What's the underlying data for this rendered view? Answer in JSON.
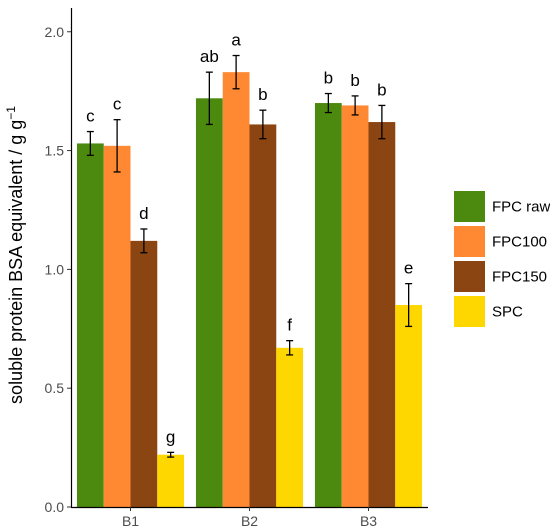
{
  "chart_data": {
    "type": "bar",
    "title": "",
    "xlabel": "",
    "ylabel": "soluble protein BSA equivalent / g g",
    "ylabel_superscript": "−1",
    "categories": [
      "B1",
      "B2",
      "B3"
    ],
    "ylim": [
      0,
      2.1
    ],
    "yticks": [
      "0.0",
      "0.5",
      "1.0",
      "1.5",
      "2.0"
    ],
    "grid": false,
    "legend_position": "right",
    "series": [
      {
        "name": "FPC raw",
        "color": "#4b8a0e",
        "values": [
          1.53,
          1.72,
          1.7
        ],
        "errors": [
          0.05,
          0.11,
          0.04
        ],
        "letters": [
          "c",
          "ab",
          "b"
        ]
      },
      {
        "name": "FPC100",
        "color": "#ff8833",
        "values": [
          1.52,
          1.83,
          1.69
        ],
        "errors": [
          0.11,
          0.07,
          0.04
        ],
        "letters": [
          "c",
          "a",
          "b"
        ]
      },
      {
        "name": "FPC150",
        "color": "#8b4513",
        "values": [
          1.12,
          1.61,
          1.62
        ],
        "errors": [
          0.05,
          0.06,
          0.07
        ],
        "letters": [
          "d",
          "b",
          "b"
        ]
      },
      {
        "name": "SPC",
        "color": "#ffd700",
        "values": [
          0.22,
          0.67,
          0.85
        ],
        "errors": [
          0.01,
          0.03,
          0.09
        ],
        "letters": [
          "g",
          "f",
          "e"
        ]
      }
    ]
  }
}
